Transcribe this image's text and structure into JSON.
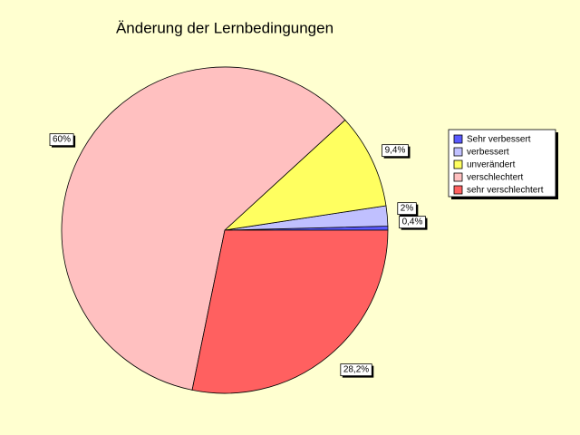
{
  "chart_data": {
    "type": "pie",
    "title": "Änderung der Lernbedingungen",
    "categories": [
      "Sehr verbessert",
      "verbessert",
      "unverändert",
      "verschlechtert",
      "sehr verschlechtert"
    ],
    "values": [
      0.4,
      2,
      9.4,
      60,
      28.2
    ],
    "value_labels": [
      "0,4%",
      "2%",
      "9,4%",
      "60%",
      "28,2%"
    ],
    "colors": [
      "#5a5aff",
      "#c0c0ff",
      "#ffff60",
      "#ffc0c0",
      "#ff6060"
    ],
    "legend": "right"
  }
}
